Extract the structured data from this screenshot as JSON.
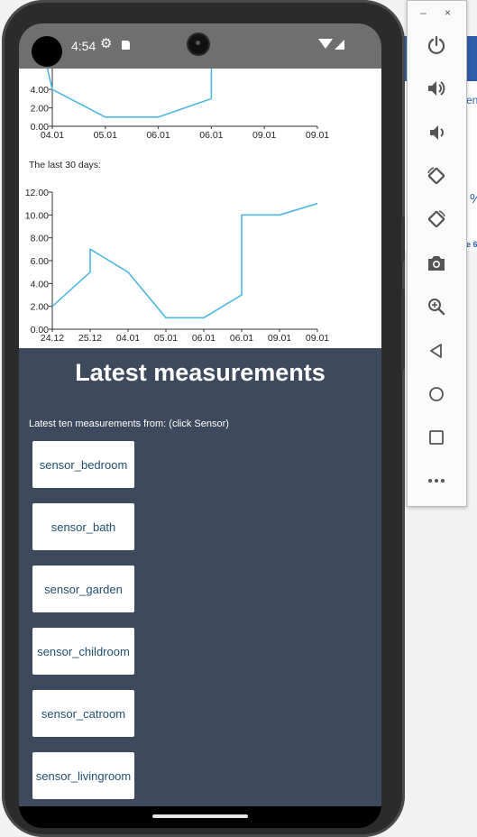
{
  "status_bar": {
    "time": "4:54"
  },
  "chart_top": {
    "chart_data": {
      "type": "line",
      "categories": [
        "04.01",
        "05.01",
        "06.01",
        "06.01",
        "09.01",
        "09.01"
      ],
      "values": [
        4,
        1,
        1,
        3,
        null,
        null
      ],
      "yticks": [
        "0.00",
        "2.00",
        "4.00"
      ],
      "ylim": [
        0,
        4.8
      ],
      "line_color": "#4fb7e3"
    }
  },
  "chart_bottom": {
    "heading": "The last 30 days:",
    "chart_data": {
      "type": "line",
      "categories": [
        "24.12",
        "25.12",
        "04.01",
        "05.01",
        "06.01",
        "06.01",
        "09.01",
        "09.01"
      ],
      "points": [
        {
          "i": 0,
          "y": 2
        },
        {
          "i": 1,
          "y": 5
        },
        {
          "i": 1,
          "y": 7
        },
        {
          "i": 2,
          "y": 5
        },
        {
          "i": 3,
          "y": 1
        },
        {
          "i": 4,
          "y": 1
        },
        {
          "i": 5,
          "y": 3
        },
        {
          "i": 5,
          "y": 10
        },
        {
          "i": 6,
          "y": 10
        },
        {
          "i": 7,
          "y": 11
        }
      ],
      "yticks": [
        "0.00",
        "2.00",
        "4.00",
        "6.00",
        "8.00",
        "10.00",
        "12.00"
      ],
      "ylim": [
        0,
        12
      ],
      "line_color": "#4fb7e3"
    }
  },
  "measurements": {
    "title": "Latest measurements",
    "subtitle": "Latest ten measurements from: (click Sensor)",
    "sensors": [
      "sensor_bedroom",
      "sensor_bath",
      "sensor_garden",
      "sensor_childroom",
      "sensor_catroom",
      "sensor_livingroom"
    ]
  },
  "emulator_panel": {
    "minimize": "–",
    "close": "×",
    "buttons": [
      "power-icon",
      "volume-up-icon",
      "volume-down-icon",
      "rotate-left-icon",
      "rotate-right-icon",
      "camera-icon",
      "zoom-icon",
      "back-icon",
      "home-icon",
      "overview-icon",
      "more-icon"
    ]
  },
  "background_window": {
    "fragment_1": "en",
    "fragment_2": "%",
    "fragment_3": "e 6"
  },
  "colors": {
    "panel_bg": "#3d4a5e",
    "button_text": "#1f4f70",
    "status_bar": "#6f6f6f"
  }
}
